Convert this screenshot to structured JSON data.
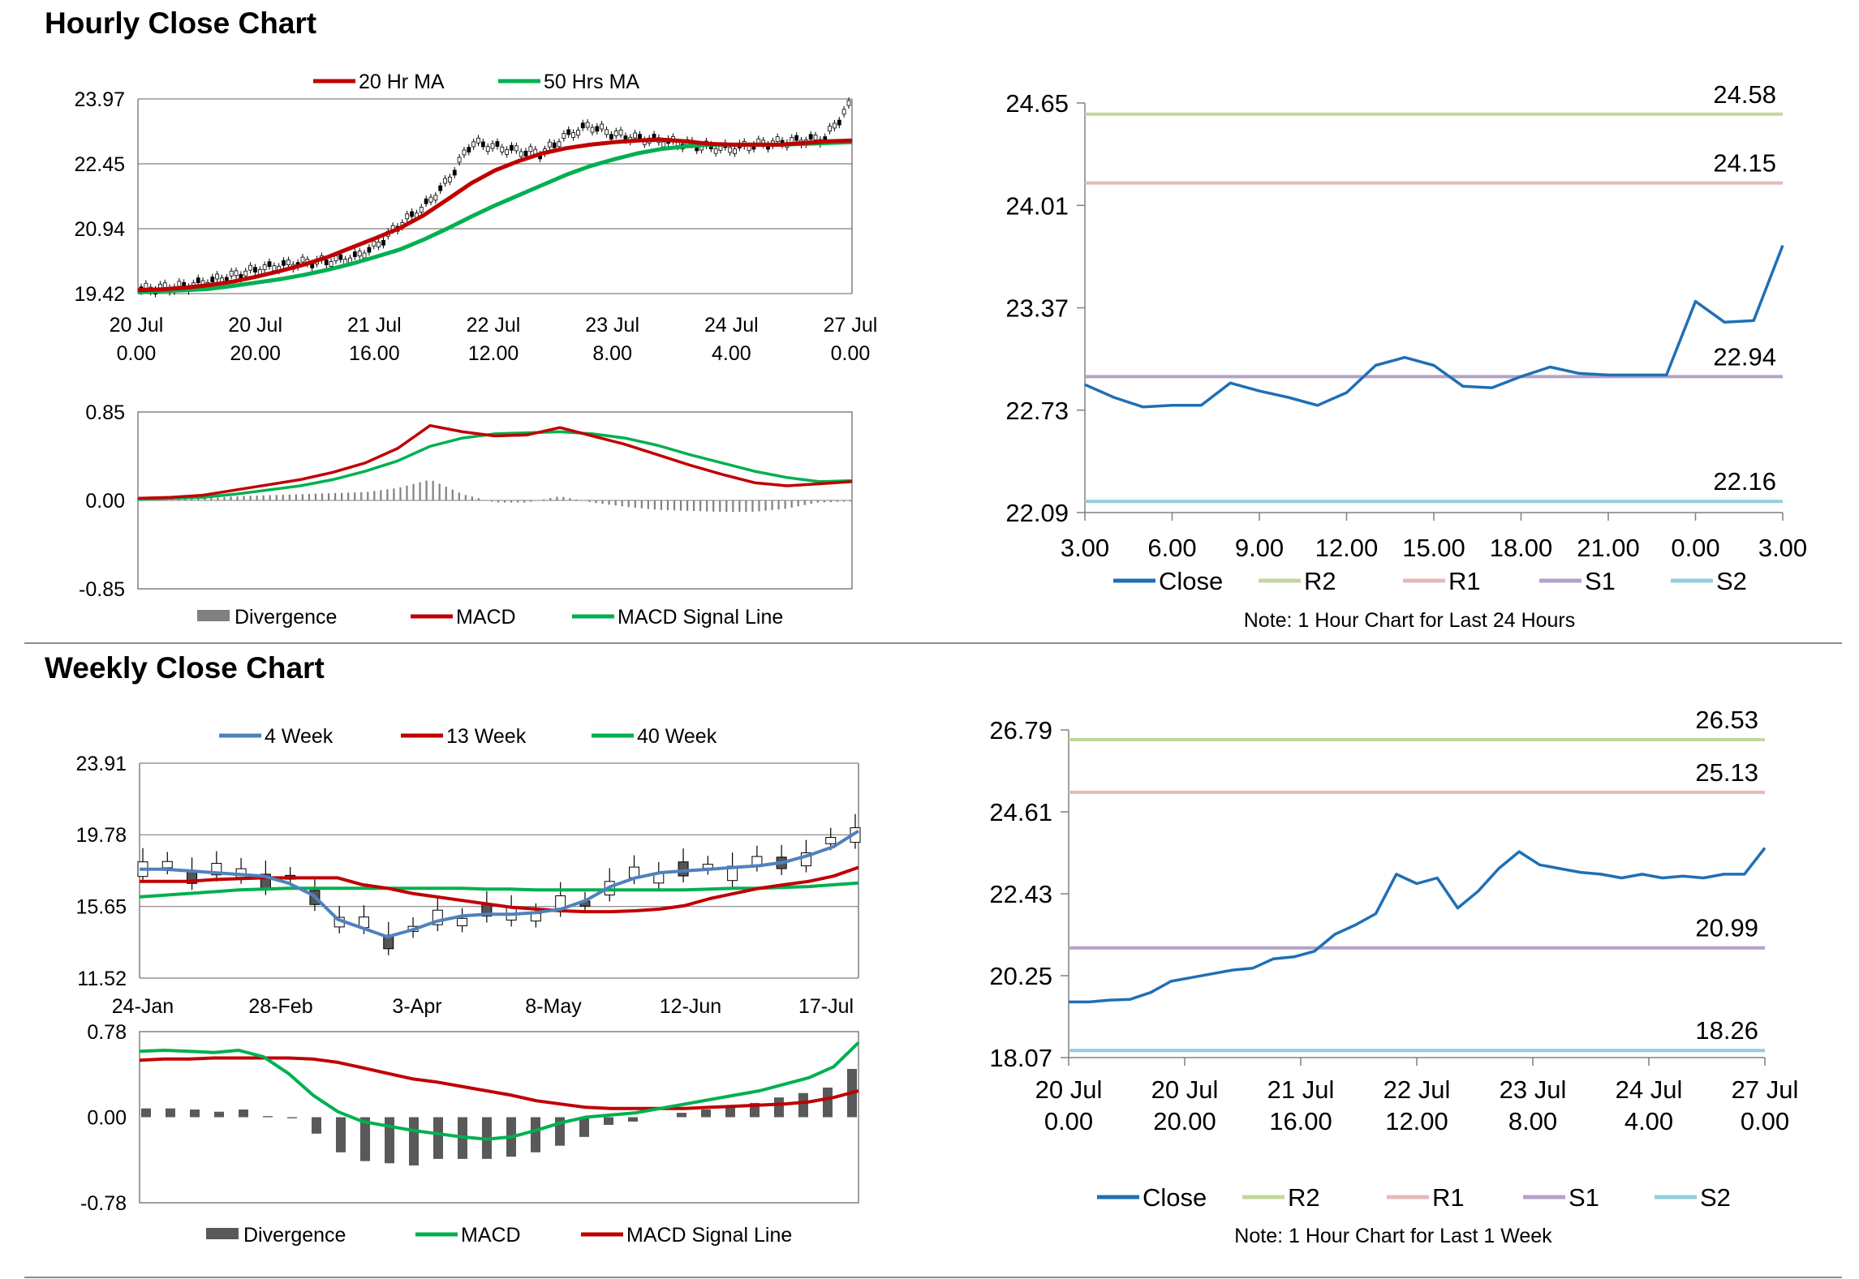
{
  "hourly": {
    "title": "Hourly Close Chart",
    "price_chart": {
      "type": "line",
      "ylim": [
        19.42,
        23.97
      ],
      "y_ticks": [
        "23.97",
        "22.45",
        "20.94",
        "19.42"
      ],
      "x_ticks": [
        [
          "20 Jul",
          "0.00"
        ],
        [
          "20 Jul",
          "20.00"
        ],
        [
          "21 Jul",
          "16.00"
        ],
        [
          "22 Jul",
          "12.00"
        ],
        [
          "23 Jul",
          "8.00"
        ],
        [
          "24 Jul",
          "4.00"
        ],
        [
          "27 Jul",
          "0.00"
        ]
      ],
      "legend": [
        "20 Hr MA",
        "50 Hrs MA"
      ],
      "series": [
        {
          "name": "20 Hr MA",
          "color": "#c00000",
          "values": [
            19.5,
            19.52,
            19.56,
            19.62,
            19.7,
            19.82,
            19.95,
            20.1,
            20.28,
            20.5,
            20.72,
            20.95,
            21.25,
            21.62,
            22.0,
            22.3,
            22.52,
            22.7,
            22.82,
            22.9,
            22.96,
            23.0,
            23.02,
            22.98,
            22.92,
            22.9,
            22.9,
            22.9,
            22.94,
            22.98,
            23.0
          ]
        },
        {
          "name": "50 Hrs MA",
          "color": "#00b050",
          "values": [
            19.45,
            19.48,
            19.5,
            19.53,
            19.6,
            19.68,
            19.76,
            19.86,
            19.98,
            20.12,
            20.28,
            20.45,
            20.68,
            20.94,
            21.22,
            21.48,
            21.72,
            21.96,
            22.2,
            22.4,
            22.56,
            22.7,
            22.8,
            22.86,
            22.9,
            22.9,
            22.9,
            22.9,
            22.92,
            22.94,
            22.96
          ]
        },
        {
          "name": "Close",
          "color": "#000000",
          "values": [
            19.52,
            19.55,
            19.6,
            19.72,
            19.85,
            20.0,
            20.08,
            20.15,
            20.18,
            20.25,
            20.55,
            21.05,
            21.45,
            22.05,
            22.95,
            22.85,
            22.75,
            22.7,
            23.1,
            23.35,
            23.15,
            23.05,
            23.0,
            22.92,
            22.85,
            22.8,
            22.9,
            22.95,
            23.0,
            23.05,
            23.8
          ]
        }
      ]
    },
    "macd_chart": {
      "type": "line",
      "ylim": [
        -0.85,
        0.85
      ],
      "y_ticks": [
        "0.85",
        "0.00",
        "-0.85"
      ],
      "legend": [
        "Divergence",
        "MACD",
        "MACD Signal Line"
      ],
      "macd": [
        0.02,
        0.03,
        0.05,
        0.1,
        0.15,
        0.2,
        0.27,
        0.36,
        0.5,
        0.72,
        0.66,
        0.62,
        0.63,
        0.7,
        0.62,
        0.54,
        0.44,
        0.34,
        0.25,
        0.17,
        0.14,
        0.16,
        0.18
      ],
      "signal": [
        0.01,
        0.02,
        0.03,
        0.06,
        0.1,
        0.14,
        0.2,
        0.28,
        0.38,
        0.52,
        0.6,
        0.64,
        0.65,
        0.66,
        0.64,
        0.6,
        0.53,
        0.44,
        0.36,
        0.28,
        0.22,
        0.18,
        0.19
      ],
      "divergence": [
        0.01,
        0.01,
        0.02,
        0.04,
        0.05,
        0.06,
        0.07,
        0.08,
        0.12,
        0.2,
        0.06,
        -0.02,
        -0.02,
        0.04,
        -0.02,
        -0.06,
        -0.09,
        -0.1,
        -0.11,
        -0.11,
        -0.08,
        -0.02,
        -0.01
      ]
    },
    "pivot_chart": {
      "type": "line",
      "ylim": [
        22.09,
        24.65
      ],
      "y_ticks": [
        "24.65",
        "24.01",
        "23.37",
        "22.73",
        "22.09"
      ],
      "x_ticks": [
        "3.00",
        "6.00",
        "9.00",
        "12.00",
        "15.00",
        "18.00",
        "21.00",
        "0.00",
        "3.00"
      ],
      "close": [
        22.89,
        22.81,
        22.75,
        22.76,
        22.76,
        22.9,
        22.85,
        22.81,
        22.76,
        22.84,
        23.01,
        23.06,
        23.01,
        22.88,
        22.87,
        22.94,
        23.0,
        22.96,
        22.95,
        22.95,
        22.95,
        23.41,
        23.28,
        23.29,
        23.76
      ],
      "levels": {
        "R2": 24.58,
        "R1": 24.15,
        "S1": 22.94,
        "S2": 22.16
      },
      "level_labels": {
        "R2": "24.58",
        "R1": "24.15",
        "S1": "22.94",
        "S2": "22.16"
      },
      "legend": [
        "Close",
        "R2",
        "R1",
        "S1",
        "S2"
      ],
      "note": "Note: 1 Hour Chart for Last 24 Hours"
    }
  },
  "weekly": {
    "title": "Weekly Close Chart",
    "price_chart": {
      "type": "line",
      "ylim": [
        11.52,
        23.91
      ],
      "y_ticks": [
        "23.91",
        "19.78",
        "15.65",
        "11.52"
      ],
      "x_ticks": [
        "24-Jan",
        "28-Feb",
        "3-Apr",
        "8-May",
        "12-Jun",
        "17-Jul"
      ],
      "legend": [
        "4 Week",
        "13 Week",
        "40 Week"
      ],
      "series": [
        {
          "name": "4 Week",
          "color": "#4f81bd",
          "values": [
            17.8,
            17.8,
            17.7,
            17.6,
            17.5,
            17.4,
            17.0,
            16.3,
            14.9,
            14.4,
            13.9,
            14.3,
            14.8,
            15.1,
            15.2,
            15.2,
            15.3,
            15.5,
            16.0,
            16.8,
            17.3,
            17.6,
            17.7,
            17.8,
            17.9,
            18.0,
            18.2,
            18.6,
            19.1,
            20.0
          ]
        },
        {
          "name": "13 Week",
          "color": "#c00000",
          "values": [
            17.1,
            17.1,
            17.1,
            17.2,
            17.25,
            17.3,
            17.3,
            17.3,
            17.3,
            16.9,
            16.7,
            16.4,
            16.2,
            16.0,
            15.8,
            15.6,
            15.5,
            15.4,
            15.35,
            15.35,
            15.4,
            15.5,
            15.7,
            16.1,
            16.4,
            16.7,
            16.9,
            17.1,
            17.4,
            17.9
          ]
        },
        {
          "name": "40 Week",
          "color": "#00b050",
          "values": [
            16.2,
            16.3,
            16.4,
            16.5,
            16.6,
            16.65,
            16.7,
            16.7,
            16.7,
            16.7,
            16.7,
            16.7,
            16.7,
            16.7,
            16.65,
            16.65,
            16.6,
            16.6,
            16.6,
            16.6,
            16.6,
            16.6,
            16.6,
            16.65,
            16.7,
            16.7,
            16.75,
            16.8,
            16.9,
            17.0
          ]
        }
      ]
    },
    "macd_chart": {
      "type": "line",
      "ylim": [
        -0.78,
        0.78
      ],
      "y_ticks": [
        "0.78",
        "0.00",
        "-0.78"
      ],
      "legend": [
        "Divergence",
        "MACD",
        "MACD Signal Line"
      ],
      "macd": [
        0.6,
        0.61,
        0.6,
        0.59,
        0.61,
        0.55,
        0.4,
        0.2,
        0.05,
        -0.04,
        -0.08,
        -0.12,
        -0.15,
        -0.18,
        -0.2,
        -0.18,
        -0.12,
        -0.05,
        0.0,
        0.02,
        0.04,
        0.08,
        0.12,
        0.16,
        0.2,
        0.24,
        0.3,
        0.36,
        0.46,
        0.68
      ],
      "signal": [
        0.52,
        0.53,
        0.53,
        0.54,
        0.54,
        0.54,
        0.54,
        0.53,
        0.5,
        0.45,
        0.4,
        0.35,
        0.32,
        0.28,
        0.24,
        0.2,
        0.15,
        0.12,
        0.09,
        0.08,
        0.08,
        0.08,
        0.08,
        0.09,
        0.1,
        0.11,
        0.12,
        0.14,
        0.18,
        0.24
      ],
      "divergence": [
        0.08,
        0.08,
        0.07,
        0.05,
        0.07,
        0.01,
        -0.01,
        -0.15,
        -0.32,
        -0.4,
        -0.42,
        -0.44,
        -0.38,
        -0.38,
        -0.38,
        -0.36,
        -0.32,
        -0.26,
        -0.18,
        -0.07,
        -0.04,
        0.0,
        0.04,
        0.07,
        0.1,
        0.13,
        0.18,
        0.22,
        0.27,
        0.44
      ]
    },
    "pivot_chart": {
      "type": "line",
      "ylim": [
        18.07,
        26.79
      ],
      "y_ticks": [
        "26.79",
        "24.61",
        "22.43",
        "20.25",
        "18.07"
      ],
      "x_ticks": [
        [
          "20 Jul",
          "0.00"
        ],
        [
          "20 Jul",
          "20.00"
        ],
        [
          "21 Jul",
          "16.00"
        ],
        [
          "22 Jul",
          "12.00"
        ],
        [
          "23 Jul",
          "8.00"
        ],
        [
          "24 Jul",
          "4.00"
        ],
        [
          "27 Jul",
          "0.00"
        ]
      ],
      "close": [
        19.55,
        19.55,
        19.6,
        19.62,
        19.8,
        20.1,
        20.2,
        20.3,
        20.4,
        20.45,
        20.7,
        20.75,
        20.9,
        21.35,
        21.6,
        21.9,
        22.95,
        22.7,
        22.85,
        22.05,
        22.5,
        23.1,
        23.55,
        23.2,
        23.1,
        23.0,
        22.95,
        22.85,
        22.95,
        22.85,
        22.9,
        22.85,
        22.95,
        22.95,
        23.65
      ],
      "levels": {
        "R2": 26.53,
        "R1": 25.13,
        "S1": 20.99,
        "S2": 18.26
      },
      "level_labels": {
        "R2": "26.53",
        "R1": "25.13",
        "S1": "20.99",
        "S2": "18.26"
      },
      "legend": [
        "Close",
        "R2",
        "R1",
        "S1",
        "S2"
      ],
      "note": "Note: 1 Hour Chart for Last 1 Week"
    }
  },
  "chart_data": [
    {
      "type": "line",
      "title": "Hourly Close Chart",
      "ylim": [
        19.42,
        23.97
      ],
      "series": [
        {
          "name": "20 Hr MA",
          "values": [
            19.5,
            19.52,
            19.56,
            19.62,
            19.7,
            19.82,
            19.95,
            20.1,
            20.28,
            20.5,
            20.72,
            20.95,
            21.25,
            21.62,
            22.0,
            22.3,
            22.52,
            22.7,
            22.82,
            22.9,
            22.96,
            23.0,
            23.02,
            22.98,
            22.92,
            22.9,
            22.9,
            22.9,
            22.94,
            22.98,
            23.0
          ]
        },
        {
          "name": "50 Hrs MA",
          "values": [
            19.45,
            19.48,
            19.5,
            19.53,
            19.6,
            19.68,
            19.76,
            19.86,
            19.98,
            20.12,
            20.28,
            20.45,
            20.68,
            20.94,
            21.22,
            21.48,
            21.72,
            21.96,
            22.2,
            22.4,
            22.56,
            22.7,
            22.8,
            22.86,
            22.9,
            22.9,
            22.9,
            22.9,
            22.92,
            22.94,
            22.96
          ]
        }
      ]
    },
    {
      "type": "line",
      "title": "Note: 1 Hour Chart for Last 24 Hours",
      "ylim": [
        22.09,
        24.65
      ],
      "series": [
        {
          "name": "Close",
          "values": [
            22.89,
            22.81,
            22.75,
            22.76,
            22.76,
            22.9,
            22.85,
            22.81,
            22.76,
            22.84,
            23.01,
            23.06,
            23.01,
            22.88,
            22.87,
            22.94,
            23.0,
            22.96,
            22.95,
            22.95,
            22.95,
            23.41,
            23.28,
            23.29,
            23.76
          ]
        }
      ],
      "levels": {
        "R2": 24.58,
        "R1": 24.15,
        "S1": 22.94,
        "S2": 22.16
      }
    },
    {
      "type": "line",
      "title": "Weekly Close Chart",
      "ylim": [
        11.52,
        23.91
      ],
      "categories": [
        "24-Jan",
        "28-Feb",
        "3-Apr",
        "8-May",
        "12-Jun",
        "17-Jul"
      ],
      "series": [
        {
          "name": "4 Week"
        },
        {
          "name": "13 Week"
        },
        {
          "name": "40 Week"
        }
      ]
    },
    {
      "type": "line",
      "title": "Note: 1 Hour Chart for Last 1 Week",
      "ylim": [
        18.07,
        26.79
      ],
      "levels": {
        "R2": 26.53,
        "R1": 25.13,
        "S1": 20.99,
        "S2": 18.26
      }
    }
  ]
}
